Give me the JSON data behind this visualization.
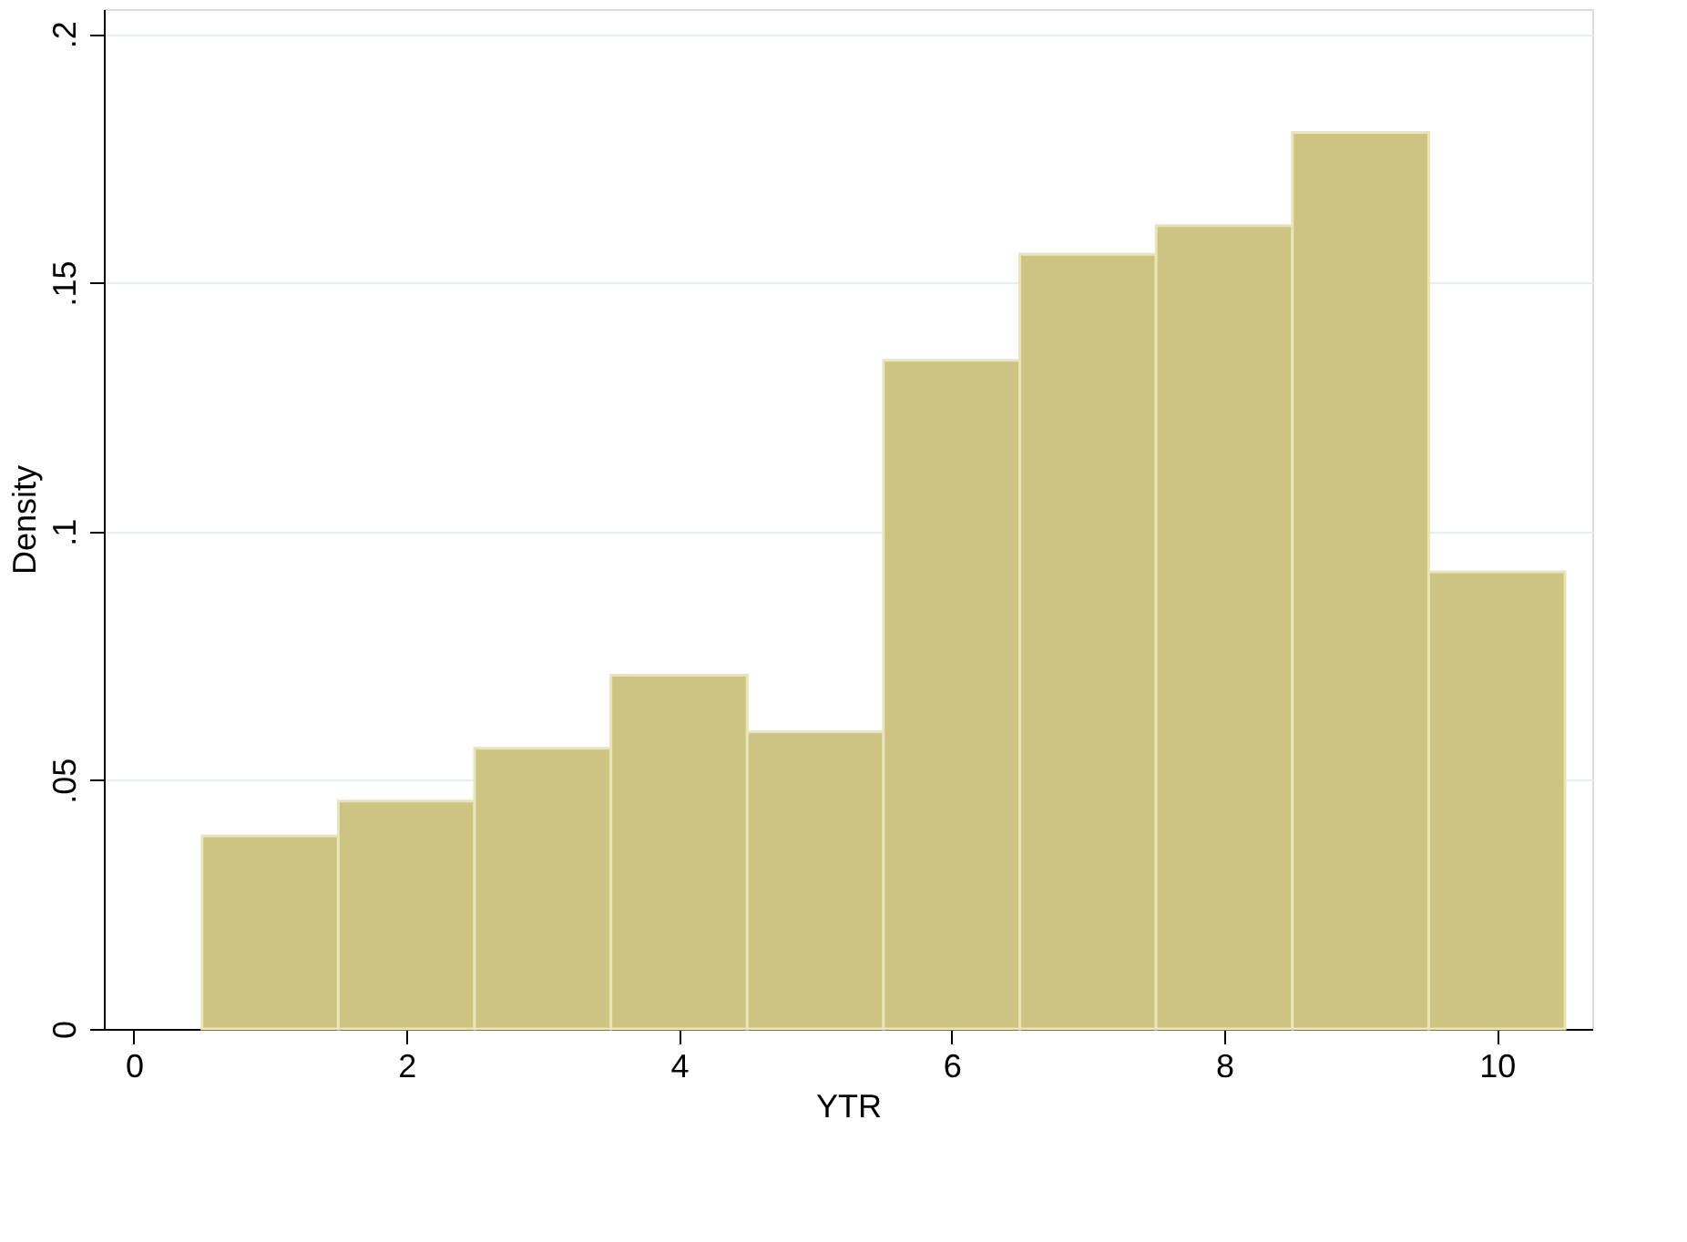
{
  "chart_data": {
    "type": "histogram",
    "xlabel": "YTR",
    "ylabel": "Density",
    "bins": [
      0.5,
      1.5,
      2.5,
      3.5,
      4.5,
      5.5,
      6.5,
      7.5,
      8.5,
      9.5,
      10.5
    ],
    "values": [
      0.0388,
      0.0458,
      0.0564,
      0.0711,
      0.0597,
      0.1344,
      0.1557,
      0.1615,
      0.1802,
      0.0919
    ],
    "color": "#cdc482",
    "xlim": [
      -0.22,
      10.7
    ],
    "xticks": [
      0,
      2,
      4,
      6,
      8,
      10
    ],
    "ylim": [
      0,
      0.205
    ],
    "yticks": [
      {
        "value": 0,
        "label": "0"
      },
      {
        "value": 0.05,
        "label": ".05"
      },
      {
        "value": 0.1,
        "label": ".1"
      },
      {
        "value": 0.15,
        "label": ".15"
      },
      {
        "value": 0.2,
        "label": ".2"
      }
    ],
    "grid": "y"
  }
}
